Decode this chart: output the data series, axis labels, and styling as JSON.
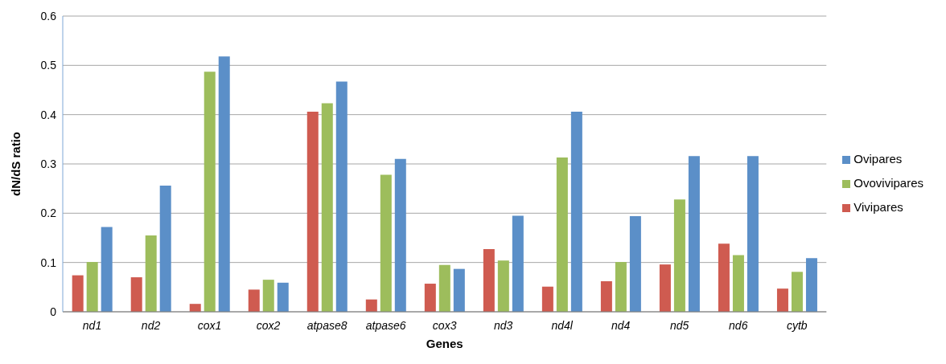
{
  "chart_data": {
    "type": "bar",
    "xlabel": "Genes",
    "ylabel": "dN/dS ratio",
    "categories": [
      "nd1",
      "nd2",
      "cox1",
      "cox2",
      "atpase8",
      "atpase6",
      "cox3",
      "nd3",
      "nd4l",
      "nd4",
      "nd5",
      "nd6",
      "cytb"
    ],
    "series": [
      {
        "name": "Vivipares",
        "color": "#cf5b50",
        "values": [
          0.074,
          0.07,
          0.016,
          0.045,
          0.406,
          0.025,
          0.057,
          0.127,
          0.051,
          0.062,
          0.096,
          0.138,
          0.047
        ]
      },
      {
        "name": "Ovovivipares",
        "color": "#9dbd5c",
        "values": [
          0.101,
          0.155,
          0.487,
          0.065,
          0.423,
          0.278,
          0.095,
          0.104,
          0.313,
          0.101,
          0.228,
          0.115,
          0.081
        ]
      },
      {
        "name": "Ovipares",
        "color": "#5b8fc8",
        "values": [
          0.172,
          0.256,
          0.518,
          0.059,
          0.467,
          0.31,
          0.087,
          0.195,
          0.406,
          0.194,
          0.316,
          0.316,
          0.109
        ]
      }
    ],
    "ylim": [
      0,
      0.6
    ],
    "yticks": [
      0,
      0.1,
      0.2,
      0.3,
      0.4,
      0.5,
      0.6
    ],
    "grid": "y",
    "legend": "right"
  }
}
